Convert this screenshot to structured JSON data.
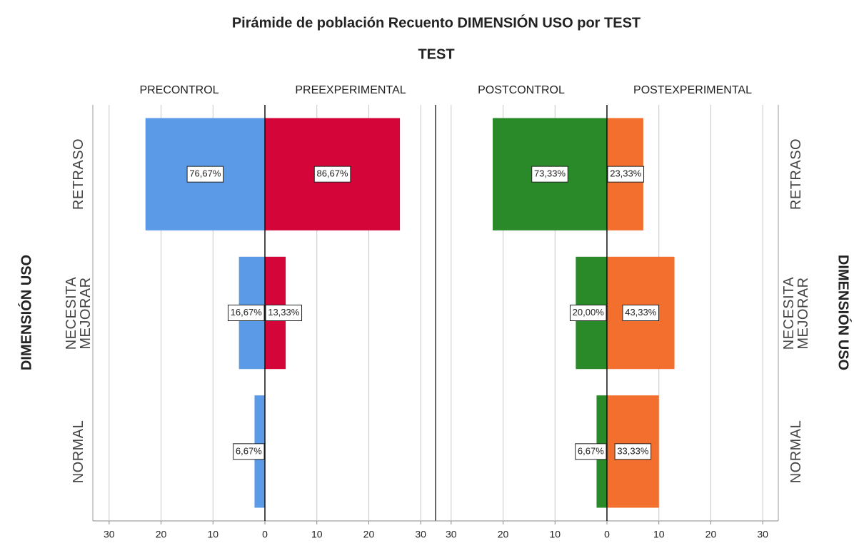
{
  "chart_data": {
    "type": "pyramid",
    "title": "Pirámide de población Recuento DIMENSIÓN USO  por TEST",
    "subtitle": "TEST",
    "y_label": "DIMENSIÓN USO",
    "categories": [
      "RETRASO",
      "NECESITA MEJORAR",
      "NORMAL"
    ],
    "xlim": [
      0,
      33
    ],
    "xticks": [
      0,
      10,
      20,
      30
    ],
    "grid": true,
    "panels": [
      {
        "series": [
          {
            "name": "PRECONTROL",
            "color": "#5a9ae6",
            "values": [
              23,
              5,
              2
            ],
            "labels": [
              "76,67%",
              "16,67%",
              "6,67%"
            ]
          },
          {
            "name": "PREEXPERIMENTAL",
            "color": "#d40538",
            "values": [
              26,
              4,
              0
            ],
            "labels": [
              "86,67%",
              "13,33%",
              null
            ]
          }
        ]
      },
      {
        "series": [
          {
            "name": "POSTCONTROL",
            "color": "#2a8a2a",
            "values": [
              22,
              6,
              2
            ],
            "labels": [
              "73,33%",
              "20,00%",
              "6,67%"
            ]
          },
          {
            "name": "POSTEXPERIMENTAL",
            "color": "#f26f2e",
            "values": [
              7,
              13,
              10
            ],
            "labels": [
              "23,33%",
              "43,33%",
              "33,33%"
            ]
          }
        ]
      }
    ]
  }
}
